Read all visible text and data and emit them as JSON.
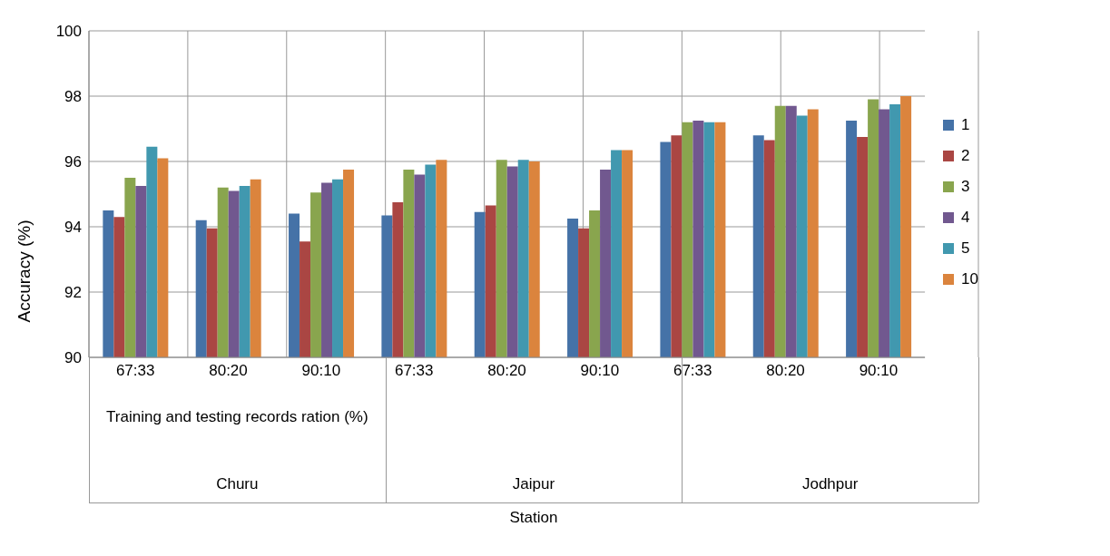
{
  "chart_data": {
    "type": "bar",
    "ylabel": "Accuracy (%)",
    "categories": [
      "67:33",
      "80:20",
      "90:10",
      "67:33",
      "80:20",
      "90:10",
      "67:33",
      "80:20",
      "90:10"
    ],
    "annotations": [
      "Training and testing records ration (%)",
      "Churu",
      "Jaipur",
      "Jodhpur",
      "Station"
    ],
    "series": [
      {
        "name": "1",
        "color": "#4572a7",
        "values": [
          94.5,
          94.2,
          94.4,
          94.35,
          94.45,
          94.25,
          96.6,
          96.8,
          97.25
        ]
      },
      {
        "name": "2",
        "color": "#aa4643",
        "values": [
          94.3,
          93.95,
          93.55,
          94.75,
          94.65,
          93.95,
          96.8,
          96.65,
          96.75
        ]
      },
      {
        "name": "3",
        "color": "#89a54e",
        "values": [
          95.5,
          95.2,
          95.05,
          95.75,
          96.05,
          94.5,
          97.2,
          97.7,
          97.9
        ]
      },
      {
        "name": "4",
        "color": "#71588f",
        "values": [
          95.25,
          95.1,
          95.35,
          95.6,
          95.85,
          95.75,
          97.25,
          97.7,
          97.6
        ]
      },
      {
        "name": "5",
        "color": "#4198af",
        "values": [
          96.45,
          95.25,
          95.45,
          95.9,
          96.05,
          96.35,
          97.2,
          97.4,
          97.75
        ]
      },
      {
        "name": "10",
        "color": "#db843d",
        "values": [
          96.1,
          95.45,
          95.75,
          96.05,
          96.0,
          96.35,
          97.2,
          97.6,
          98.0
        ]
      }
    ],
    "ylim": [
      90,
      100
    ],
    "yticks": [
      90,
      92,
      94,
      96,
      98,
      100
    ],
    "grid": true,
    "legend": "right"
  }
}
